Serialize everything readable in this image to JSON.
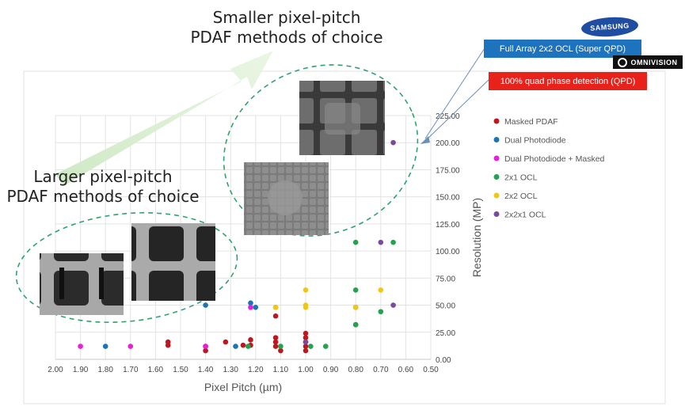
{
  "callouts": {
    "smaller_line1": "Smaller pixel-pitch",
    "smaller_line2": "PDAF methods of choice",
    "larger_line1": "Larger pixel-pitch",
    "larger_line2": "PDAF methods of choice"
  },
  "brands": {
    "samsung_logo": "SAMSUNG",
    "samsung_label": "Full Array 2x2 OCL (Super QPD)",
    "omnivision_logo": "OMNIVISION",
    "omnivision_label": "100% quad phase detection (QPD)",
    "samsung_color": "#1e73be",
    "omnivision_color": "#e8221b"
  },
  "chart_data": {
    "type": "scatter",
    "title": "",
    "xlabel": "Pixel Pitch (µm)",
    "ylabel": "Resolution (MP)",
    "x_reversed": true,
    "xlim": [
      0.5,
      2.0
    ],
    "ylim": [
      0,
      225
    ],
    "xticks": [
      "2.00",
      "1.90",
      "1.80",
      "1.70",
      "1.60",
      "1.50",
      "1.40",
      "1.30",
      "1.20",
      "1.10",
      "1.00",
      "0.90",
      "0.80",
      "0.70",
      "0.60",
      "0.50"
    ],
    "yticks": [
      "0.00",
      "25.00",
      "50.00",
      "75.00",
      "100.00",
      "125.00",
      "150.00",
      "175.00",
      "200.00",
      "225.00"
    ],
    "grid": true,
    "legend_position": "right",
    "series": [
      {
        "name": "Masked PDAF",
        "color": "#c0171e",
        "points": [
          [
            1.55,
            16
          ],
          [
            1.55,
            13
          ],
          [
            1.4,
            12
          ],
          [
            1.4,
            8
          ],
          [
            1.32,
            16
          ],
          [
            1.25,
            13
          ],
          [
            1.22,
            18
          ],
          [
            1.22,
            13
          ],
          [
            1.12,
            40
          ],
          [
            1.12,
            20
          ],
          [
            1.12,
            16
          ],
          [
            1.12,
            12
          ],
          [
            1.1,
            8
          ],
          [
            1.0,
            24
          ],
          [
            1.0,
            20
          ],
          [
            1.0,
            16
          ],
          [
            1.0,
            12
          ],
          [
            1.0,
            8
          ],
          [
            0.8,
            48
          ],
          [
            0.8,
            32
          ]
        ]
      },
      {
        "name": "Dual Photodiode",
        "color": "#1b75b5",
        "points": [
          [
            1.8,
            12
          ],
          [
            1.4,
            50
          ],
          [
            1.28,
            12
          ],
          [
            1.22,
            52
          ],
          [
            1.2,
            48
          ]
        ]
      },
      {
        "name": "Dual Photodiode + Masked",
        "color": "#e71fd6",
        "points": [
          [
            1.9,
            12
          ],
          [
            1.7,
            12
          ],
          [
            1.4,
            12
          ],
          [
            1.22,
            48
          ]
        ]
      },
      {
        "name": "2x1 OCL",
        "color": "#22a34f",
        "points": [
          [
            1.23,
            12
          ],
          [
            1.1,
            12
          ],
          [
            0.98,
            12
          ],
          [
            0.92,
            12
          ],
          [
            0.8,
            108
          ],
          [
            0.8,
            64
          ],
          [
            0.8,
            32
          ],
          [
            0.7,
            44
          ],
          [
            0.65,
            108
          ],
          [
            1.12,
            48
          ]
        ]
      },
      {
        "name": "2x2 OCL",
        "color": "#f2c614",
        "points": [
          [
            1.12,
            48
          ],
          [
            1.0,
            64
          ],
          [
            1.0,
            50
          ],
          [
            1.0,
            48
          ],
          [
            0.8,
            48
          ],
          [
            0.7,
            64
          ]
        ]
      },
      {
        "name": "2x2x1 OCL",
        "color": "#7a4b9c",
        "points": [
          [
            0.65,
            200
          ],
          [
            0.7,
            108
          ],
          [
            0.65,
            50
          ],
          [
            1.0,
            16
          ]
        ]
      }
    ]
  }
}
